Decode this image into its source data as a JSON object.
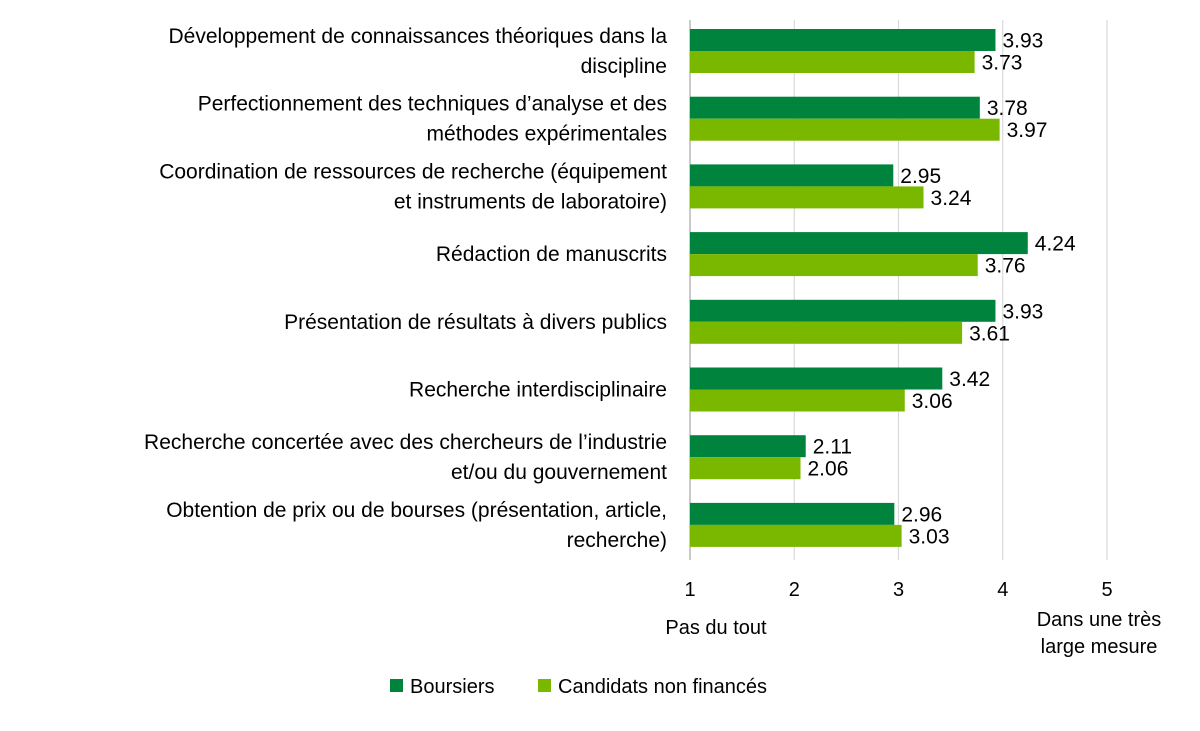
{
  "chart_data": {
    "type": "bar",
    "orientation": "horizontal",
    "categories": [
      [
        "Développement de connaissances théoriques dans la",
        "discipline"
      ],
      [
        "Perfectionnement des techniques d’analyse et des",
        "méthodes expérimentales"
      ],
      [
        "Coordination de ressources de recherche (équipement",
        "et instruments de laboratoire)"
      ],
      [
        "Rédaction de manuscrits"
      ],
      [
        "Présentation de résultats à divers publics"
      ],
      [
        "Recherche interdisciplinaire"
      ],
      [
        "Recherche concertée avec des chercheurs de l’industrie",
        "et/ou du gouvernement"
      ],
      [
        "Obtention de prix ou de bourses (présentation, article,",
        "recherche)"
      ]
    ],
    "series": [
      {
        "name": "Boursiers",
        "color": "#00843D",
        "values": [
          3.93,
          3.78,
          2.95,
          4.24,
          3.93,
          3.42,
          2.11,
          2.96
        ]
      },
      {
        "name": "Candidats non financés",
        "color": "#7AB800",
        "values": [
          3.73,
          3.97,
          3.24,
          3.76,
          3.61,
          3.06,
          2.06,
          3.03
        ]
      }
    ],
    "xlim": [
      1,
      5
    ],
    "x_ticks": [
      "1",
      "2",
      "3",
      "4",
      "5"
    ],
    "x_anchor_labels": {
      "low": [
        "Pas du tout"
      ],
      "high": [
        "Dans une très",
        "large mesure"
      ]
    },
    "grid": true,
    "legend": "bottom"
  }
}
